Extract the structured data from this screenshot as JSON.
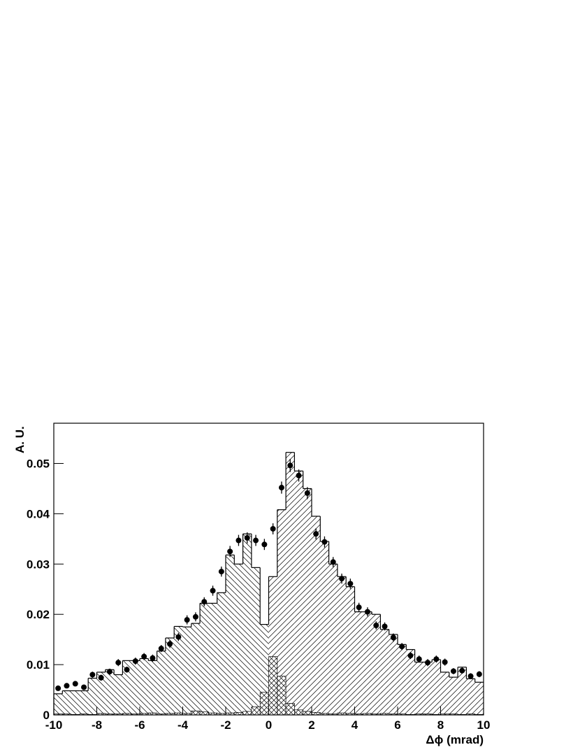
{
  "chart_data": {
    "type": "histogram",
    "x_label": "Δϕ (mrad)",
    "y_label": "A. U.",
    "bins": [
      -10,
      -9.6,
      -9.2,
      -8.8,
      -8.4,
      -8,
      -7.6,
      -7.2,
      -6.8,
      -6.4,
      -6,
      -5.6,
      -5.2,
      -4.8,
      -4.4,
      -4,
      -3.6,
      -3.2,
      -2.8,
      -2.4,
      -2,
      -1.6,
      -1.2,
      -0.8,
      -0.4,
      0,
      0.4,
      0.8,
      1.2,
      1.6,
      2,
      2.4,
      2.8,
      3.2,
      3.6,
      4,
      4.4,
      4.8,
      5.2,
      5.6,
      6,
      6.4,
      6.8,
      7.2,
      7.6,
      8,
      8.4,
      8.8,
      9.2,
      9.6,
      10
    ],
    "hist_values": [
      0.0042,
      0.0048,
      0.0048,
      0.0048,
      0.0073,
      0.0085,
      0.009,
      0.008,
      0.0108,
      0.0108,
      0.0112,
      0.0108,
      0.0127,
      0.0153,
      0.0176,
      0.0175,
      0.0182,
      0.0222,
      0.0222,
      0.0243,
      0.0318,
      0.03,
      0.036,
      0.0293,
      0.018,
      0.0275,
      0.0408,
      0.0522,
      0.0485,
      0.045,
      0.0395,
      0.0345,
      0.03,
      0.0275,
      0.0255,
      0.0205,
      0.0205,
      0.02,
      0.017,
      0.016,
      0.014,
      0.013,
      0.0105,
      0.0105,
      0.011,
      0.0085,
      0.0075,
      0.0095,
      0.0072,
      0.0065
    ],
    "background_values": [
      0.0002,
      0.0002,
      0.0001,
      0.0002,
      0.0001,
      0.0003,
      0.0002,
      0.0002,
      0.0003,
      0.0002,
      0.0003,
      0.0004,
      0.0002,
      0.0003,
      0.0004,
      0.0003,
      0.0008,
      0.0006,
      0.0004,
      0.0003,
      0.0004,
      0.0005,
      0.0007,
      0.0016,
      0.0045,
      0.0116,
      0.0077,
      0.0023,
      0.001,
      0.0007,
      0.0005,
      0.0003,
      0.0002,
      0.0004,
      0.0003,
      0.0002,
      0.0003,
      0.0002,
      0.0003,
      0.0002,
      0.0002,
      0.0001,
      0.0002,
      0.0002,
      0.0001,
      0.0002,
      0.0002,
      0.0001,
      0.0002,
      0.0001
    ],
    "data_values": [
      0.0053,
      0.0058,
      0.0062,
      0.0055,
      0.008,
      0.0074,
      0.0086,
      0.0104,
      0.009,
      0.0107,
      0.0116,
      0.0113,
      0.0132,
      0.0141,
      0.0155,
      0.0189,
      0.0195,
      0.0225,
      0.0247,
      0.0285,
      0.0325,
      0.0347,
      0.0352,
      0.0347,
      0.0339,
      0.037,
      0.0452,
      0.0496,
      0.0476,
      0.0441,
      0.036,
      0.0344,
      0.0304,
      0.0271,
      0.0261,
      0.0214,
      0.0205,
      0.0178,
      0.0176,
      0.0154,
      0.0136,
      0.0118,
      0.0111,
      0.0104,
      0.0111,
      0.0105,
      0.0087,
      0.0088,
      0.0077,
      0.0081
    ],
    "data_errors": [
      0.0005,
      0.0005,
      0.0005,
      0.0005,
      0.0006,
      0.0006,
      0.0006,
      0.0007,
      0.0006,
      0.0007,
      0.0007,
      0.0007,
      0.0007,
      0.0008,
      0.0008,
      0.0009,
      0.0009,
      0.0009,
      0.001,
      0.001,
      0.0011,
      0.0011,
      0.0011,
      0.0011,
      0.0011,
      0.0011,
      0.0012,
      0.0013,
      0.0012,
      0.0012,
      0.0011,
      0.0011,
      0.001,
      0.001,
      0.001,
      0.0009,
      0.0009,
      0.0008,
      0.0008,
      0.0008,
      0.0007,
      0.0007,
      0.0007,
      0.0007,
      0.0007,
      0.0007,
      0.0006,
      0.0006,
      0.0006,
      0.0006
    ],
    "xlim": [
      -10,
      10
    ],
    "xticks": [
      -10,
      -8,
      -6,
      -4,
      -2,
      0,
      2,
      4,
      6,
      8,
      10
    ],
    "ylim": [
      0,
      0.058
    ],
    "yticks": [
      0,
      0.01,
      0.02,
      0.03,
      0.04,
      0.05
    ],
    "grid": false
  }
}
